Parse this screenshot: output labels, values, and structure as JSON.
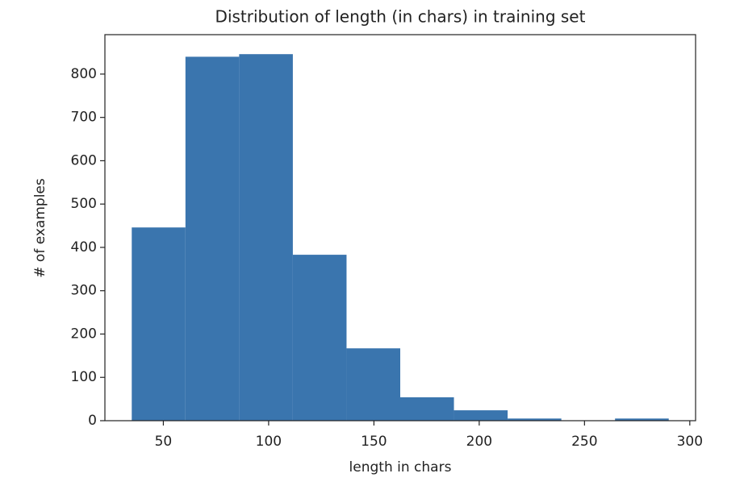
{
  "chart_data": {
    "type": "histogram",
    "title": "Distribution of length (in chars) in training set",
    "x_label": "length in chars",
    "y_label": "# of examples",
    "bins": [
      35,
      60.5,
      86,
      111.5,
      137,
      162.5,
      188,
      213.5,
      239,
      264.5,
      290
    ],
    "counts": [
      446,
      840,
      846,
      383,
      167,
      54,
      24,
      5,
      0,
      5
    ],
    "color": "#3a75ae",
    "xlim": [
      22.25,
      302.75
    ],
    "xticks": [
      50,
      100,
      150,
      200,
      250,
      300
    ],
    "ylim": [
      0,
      891
    ],
    "yticks": [
      0,
      100,
      200,
      300,
      400,
      500,
      600,
      700,
      800
    ],
    "grid": false
  }
}
